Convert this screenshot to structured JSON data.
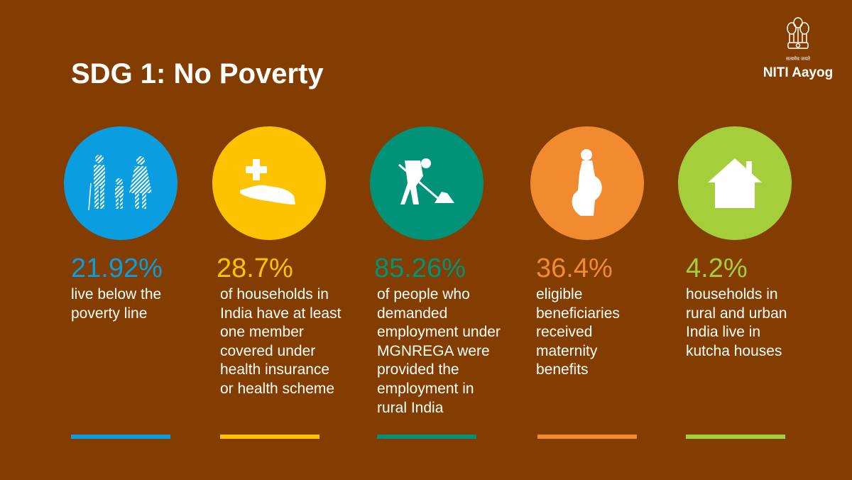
{
  "header": {
    "title": "SDG 1: No Poverty"
  },
  "logo": {
    "motto": "सत्यमेव जयते",
    "name": "NITI Aayog"
  },
  "stats": [
    {
      "icon": "family-icon",
      "color": "#0a9de0",
      "value": "21.92%",
      "description": "live below the poverty line"
    },
    {
      "icon": "health-care-hand-icon",
      "color": "#fdc300",
      "value": "28.7%",
      "description": "of households in India have at least one member covered under health insurance or health scheme"
    },
    {
      "icon": "worker-shovel-icon",
      "color": "#009379",
      "value": "85.26%",
      "description": "of people who demanded employment under MGNREGA were provided the employment in rural India"
    },
    {
      "icon": "pregnant-woman-icon",
      "color": "#f28a30",
      "value": "36.4%",
      "description": "eligible beneficiaries received maternity benefits"
    },
    {
      "icon": "house-icon",
      "color": "#a5ce3b",
      "value": "4.2%",
      "description": "households in rural and urban India live in kutcha houses"
    }
  ]
}
